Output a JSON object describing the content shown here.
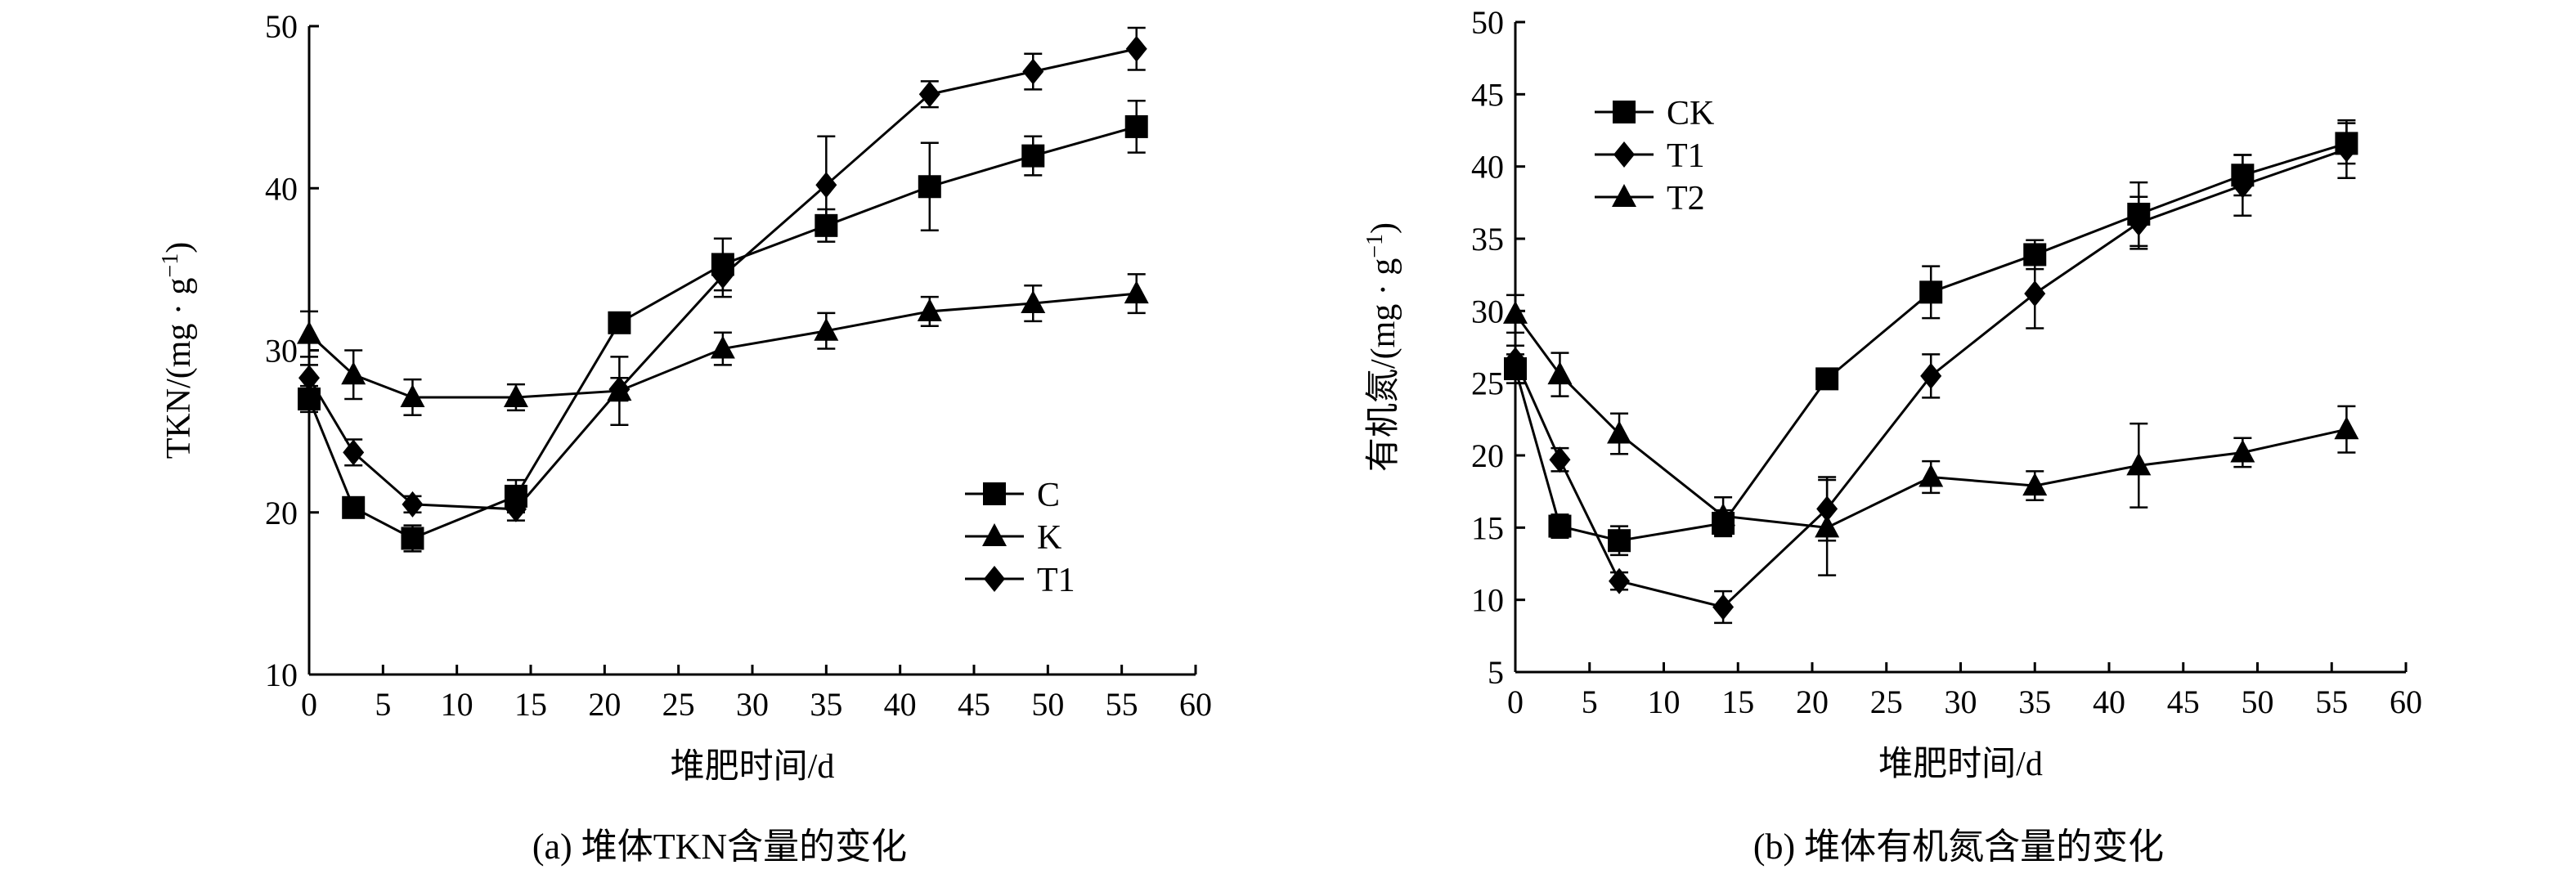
{
  "chart_data": [
    {
      "type": "line",
      "title": "",
      "caption": "(a) 堆体TKN含量的变化",
      "xlabel": "堆肥时间/d",
      "ylabel": "TKN/(mg · g",
      "ylabel_sup": "−1",
      "ylabel_end": ")",
      "xlim": [
        0,
        60
      ],
      "ylim": [
        10,
        50
      ],
      "xticks": [
        "0",
        "5",
        "10",
        "15",
        "20",
        "25",
        "30",
        "35",
        "40",
        "45",
        "50",
        "55",
        "60"
      ],
      "yticks": [
        "10",
        "20",
        "30",
        "40",
        "50"
      ],
      "grid": false,
      "legend_position": "lower-right",
      "x": [
        0,
        3,
        7,
        14,
        21,
        28,
        35,
        42,
        49,
        56
      ],
      "series": [
        {
          "name": "C",
          "marker": "square",
          "values": [
            27.0,
            20.3,
            18.4,
            21.0,
            31.7,
            35.3,
            37.7,
            40.1,
            42.0,
            43.8
          ],
          "errors": [
            0.8,
            0.5,
            0.8,
            1.0,
            0.5,
            1.6,
            1.0,
            2.7,
            1.2,
            1.6
          ]
        },
        {
          "name": "K",
          "marker": "triangle",
          "values": [
            31.0,
            28.5,
            27.1,
            27.1,
            27.5,
            30.1,
            31.2,
            32.4,
            32.9,
            33.5
          ],
          "errors": [
            1.4,
            1.5,
            1.1,
            0.8,
            2.1,
            1.0,
            1.1,
            0.9,
            1.1,
            1.2
          ]
        },
        {
          "name": "T1",
          "marker": "diamond",
          "values": [
            28.3,
            23.7,
            20.5,
            20.2,
            27.6,
            34.6,
            40.2,
            45.8,
            47.2,
            48.6
          ],
          "errors": [
            0.8,
            0.8,
            0.5,
            0.7,
            0.7,
            1.3,
            3.0,
            0.8,
            1.1,
            1.3
          ]
        }
      ]
    },
    {
      "type": "line",
      "title": "",
      "caption": "(b) 堆体有机氮含量的变化",
      "xlabel": "堆肥时间/d",
      "ylabel": "有机氮/(mg · g",
      "ylabel_sup": "−1",
      "ylabel_end": ")",
      "xlim": [
        0,
        60
      ],
      "ylim": [
        5,
        50
      ],
      "xticks": [
        "0",
        "5",
        "10",
        "15",
        "20",
        "25",
        "30",
        "35",
        "40",
        "45",
        "50",
        "55",
        "60"
      ],
      "yticks": [
        "5",
        "10",
        "15",
        "20",
        "25",
        "30",
        "35",
        "40",
        "45",
        "50"
      ],
      "grid": false,
      "legend_position": "top-left",
      "x": [
        0,
        3,
        7,
        14,
        21,
        28,
        35,
        42,
        49,
        56
      ],
      "series": [
        {
          "name": "CK",
          "marker": "square",
          "values": [
            26.0,
            15.1,
            14.1,
            15.3,
            25.3,
            31.3,
            33.9,
            36.7,
            39.4,
            41.6
          ],
          "errors": [
            1.0,
            0.8,
            1.0,
            0.9,
            0.6,
            1.8,
            1.0,
            2.2,
            1.4,
            1.4
          ]
        },
        {
          "name": "T1",
          "marker": "diamond",
          "values": [
            26.6,
            19.7,
            11.3,
            9.5,
            16.3,
            25.5,
            31.2,
            36.1,
            38.7,
            41.2
          ],
          "errors": [
            1.0,
            0.8,
            0.6,
            1.1,
            2.2,
            1.5,
            2.4,
            1.8,
            2.1,
            2.0
          ]
        },
        {
          "name": "T2",
          "marker": "triangle",
          "values": [
            29.8,
            25.6,
            21.5,
            15.8,
            15.0,
            18.5,
            17.9,
            19.3,
            20.2,
            21.8
          ],
          "errors": [
            1.3,
            1.5,
            1.4,
            1.3,
            3.3,
            1.1,
            1.0,
            2.9,
            1.0,
            1.6
          ]
        }
      ]
    }
  ]
}
